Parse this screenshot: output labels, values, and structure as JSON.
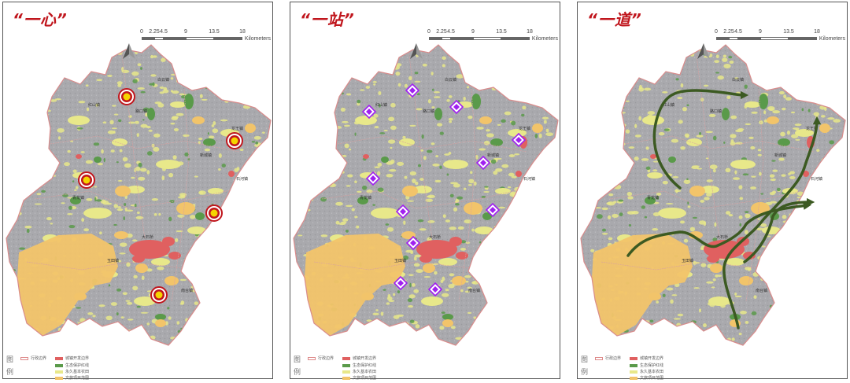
{
  "panels": [
    {
      "title": "“一心”",
      "symbol": "center"
    },
    {
      "title": "“一站”",
      "symbol": "station"
    },
    {
      "title": "“一道”",
      "symbol": "corridor"
    }
  ],
  "scale": {
    "ticks": [
      "0",
      "2.25",
      "4.5",
      "9",
      "13.5",
      "18"
    ],
    "unit": "Kilometers"
  },
  "legend": {
    "title": "图例",
    "items": [
      {
        "label": "行政边界",
        "swatch": "outline",
        "color": "#d98c8c"
      },
      {
        "label": "城镇开发边界",
        "swatch": "fill",
        "color": "#e06060"
      },
      {
        "label": "生态保护红线",
        "swatch": "fill",
        "color": "#5a9a4a"
      },
      {
        "label": "永久基本农田",
        "swatch": "fill",
        "color": "#e8e88a"
      },
      {
        "label": "文旅项目范围",
        "swatch": "fill",
        "color": "#f2c46a"
      }
    ]
  },
  "place_labels": [
    "红山镇",
    "路口镇",
    "龙王镇",
    "石河镇",
    "大石桥",
    "玉田镇",
    "南台镇",
    "青龙镇",
    "新城镇",
    "白云镇"
  ],
  "colors": {
    "base": "#a9a9ad",
    "boundary": "#d98c8c",
    "farmland": "#e8e88a",
    "ecology": "#5a9a4a",
    "urban": "#e06060",
    "tourism": "#f2c46a",
    "center_marker": "#c0161d",
    "center_fill": "#f5d400",
    "station_marker": "#a020f0",
    "corridor": "#3c5a22"
  }
}
